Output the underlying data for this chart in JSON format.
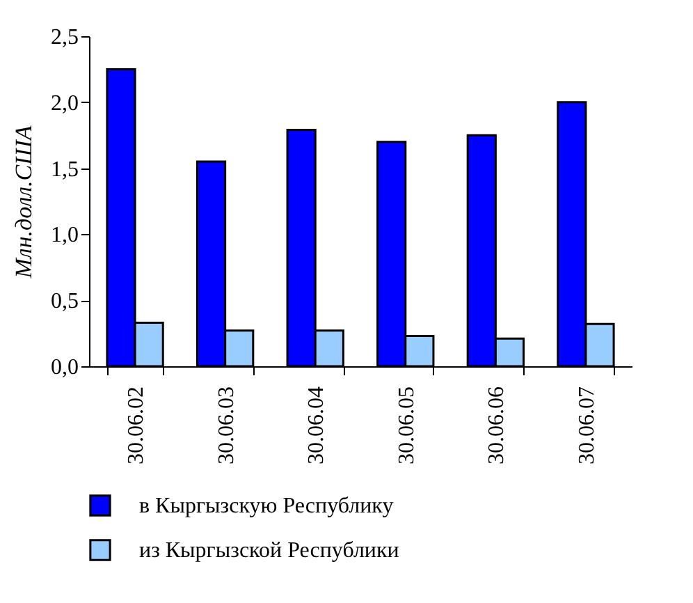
{
  "chart_data": {
    "type": "bar",
    "ylabel": "Млн.долл.США",
    "categories": [
      "30.06.02",
      "30.06.03",
      "30.06.04",
      "30.06.05",
      "30.06.06",
      "30.06.07"
    ],
    "series": [
      {
        "name": "в Кыргызскую Республику",
        "color": "#0000ff",
        "values": [
          2.25,
          1.55,
          1.79,
          1.7,
          1.75,
          2.0
        ]
      },
      {
        "name": "из Кыргызской Республики",
        "color": "#99ccff",
        "values": [
          0.33,
          0.27,
          0.27,
          0.23,
          0.21,
          0.32
        ]
      }
    ],
    "ylim": [
      0,
      2.5
    ],
    "yticks": [
      {
        "value": 0,
        "label": "0,0"
      },
      {
        "value": 0.5,
        "label": "0,5"
      },
      {
        "value": 1,
        "label": "1,0"
      },
      {
        "value": 1.5,
        "label": "1,5"
      },
      {
        "value": 2,
        "label": "2,0"
      },
      {
        "value": 2.5,
        "label": "2,5"
      }
    ],
    "grid": false,
    "legend": "bottom"
  }
}
